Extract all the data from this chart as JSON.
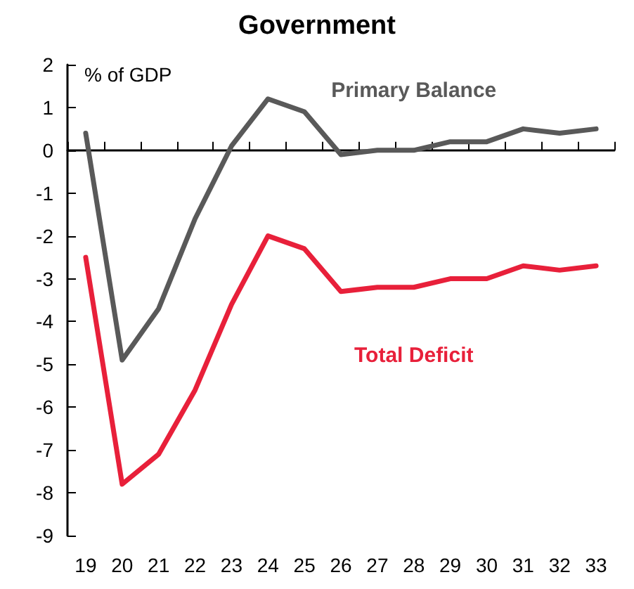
{
  "chart_data": {
    "type": "line",
    "title": "Government",
    "ylabel": "% of GDP",
    "categories": [
      "19",
      "20",
      "21",
      "22",
      "23",
      "24",
      "25",
      "26",
      "27",
      "28",
      "29",
      "30",
      "31",
      "32",
      "33"
    ],
    "series": [
      {
        "name": "Primary Balance",
        "color": "#595959",
        "values": [
          0.4,
          -4.9,
          -3.7,
          -1.6,
          0.1,
          1.2,
          0.9,
          -0.1,
          0,
          0,
          0.2,
          0.2,
          0.5,
          0.4,
          0.5
        ]
      },
      {
        "name": "Total Deficit",
        "color": "#e8203a",
        "values": [
          -2.5,
          -7.8,
          -7.1,
          -5.6,
          -3.6,
          -2.0,
          -2.3,
          -3.3,
          -3.2,
          -3.2,
          -3.0,
          -3.0,
          -2.7,
          -2.8,
          -2.7
        ]
      }
    ],
    "ylim": [
      -9,
      2
    ],
    "yticks": [
      -9,
      -8,
      -7,
      -6,
      -5,
      -4,
      -3,
      -2,
      -1,
      0,
      1,
      2
    ],
    "legend": false,
    "marker": "none",
    "line_style": "solid"
  }
}
